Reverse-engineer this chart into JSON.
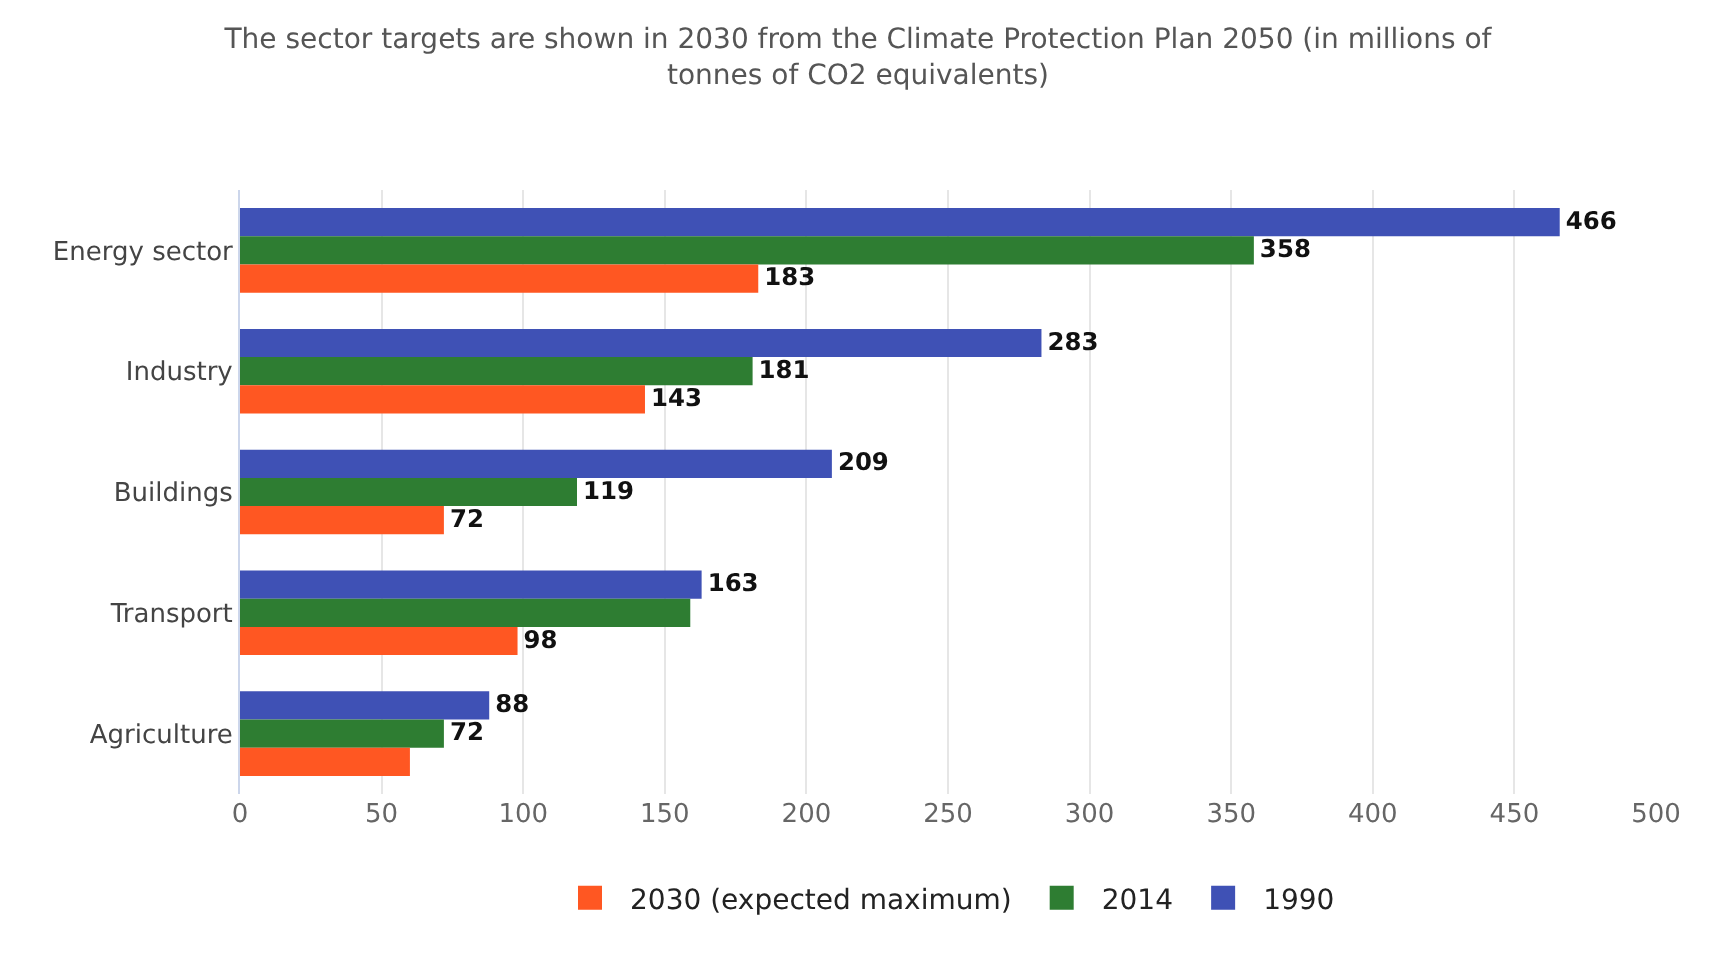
{
  "chart_data": {
    "type": "bar",
    "orientation": "horizontal",
    "title": "The sector targets are shown in 2030 from the Climate Protection Plan 2050 (in millions of tonnes of CO2 equivalents)",
    "categories": [
      "Energy sector",
      "Industry",
      "Buildings",
      "Transport",
      "Agriculture"
    ],
    "series": [
      {
        "name": "2030 (expected maximum)",
        "color": "#ff5722",
        "values": [
          183,
          143,
          72,
          98,
          60
        ],
        "value_labels": [
          "183",
          "143",
          "72",
          "98",
          null
        ]
      },
      {
        "name": "2014",
        "color": "#2e7d32",
        "values": [
          358,
          181,
          119,
          159,
          72
        ],
        "value_labels": [
          "358",
          "181",
          "119",
          null,
          "72"
        ]
      },
      {
        "name": "1990",
        "color": "#3f51b5",
        "values": [
          466,
          283,
          209,
          163,
          88
        ],
        "value_labels": [
          "466",
          "283",
          "209",
          "163",
          "88"
        ]
      }
    ],
    "xlim": [
      0,
      500
    ],
    "xticks": [
      0,
      50,
      100,
      150,
      200,
      250,
      300,
      350,
      400,
      450,
      500
    ],
    "grid": "x",
    "legend": "bottom"
  }
}
